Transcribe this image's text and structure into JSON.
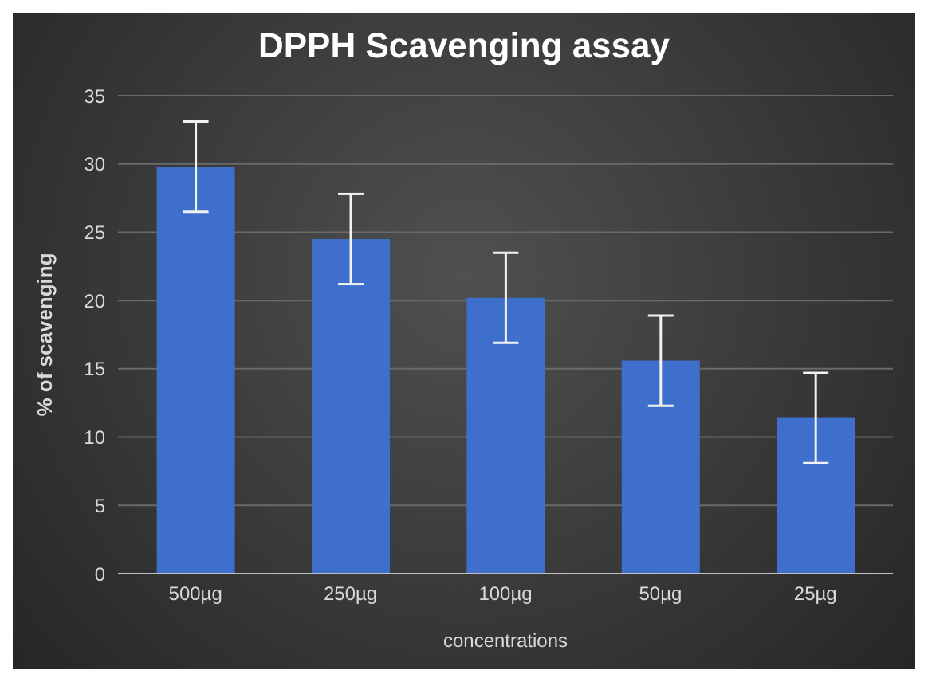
{
  "chart_data": {
    "type": "bar",
    "title": "DPPH Scavenging assay",
    "xlabel": "concentrations",
    "ylabel": "% of  scavenging",
    "categories": [
      "500µg",
      "250µg",
      "100µg",
      "50µg",
      "25µg"
    ],
    "values": [
      29.8,
      24.5,
      20.2,
      15.6,
      11.4
    ],
    "errors": [
      3.3,
      3.3,
      3.3,
      3.3,
      3.3
    ],
    "color": "#3f6fcc",
    "ylim": [
      0,
      35
    ],
    "yticks": [
      0,
      5,
      10,
      15,
      20,
      25,
      30,
      35
    ],
    "grid": "y"
  }
}
